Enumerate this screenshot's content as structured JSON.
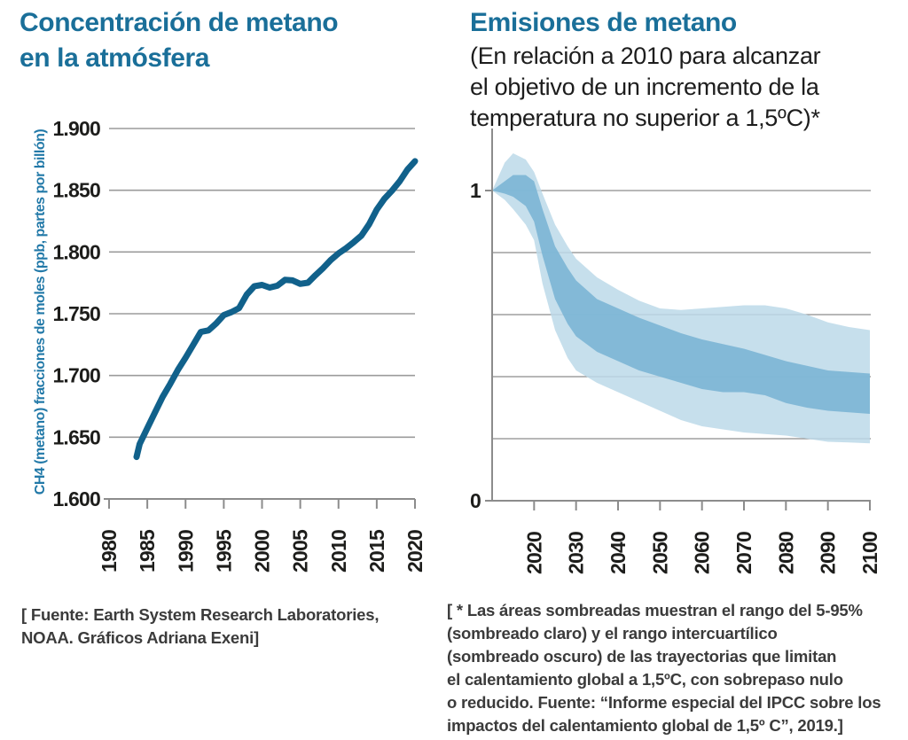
{
  "page": {
    "background": "#ffffff"
  },
  "left_chart": {
    "title_lines": [
      "Concentración de metano",
      "en la atmósfera"
    ],
    "source_lines": [
      "[  Fuente: Earth System Research Laboratories,",
      "NOAA. Gráficos Adriana Exeni]"
    ]
  },
  "right_chart": {
    "title_lines": [
      "Emisiones de metano"
    ],
    "subtitle_lines": [
      "(En relación a 2010 para alcanzar",
      "el objetivo de un incremento de la",
      "temperatura no superior a 1,5ºC)*"
    ],
    "footnote_lines": [
      "[ * Las áreas sombreadas muestran el rango del 5-95%",
      "(sombreado claro) y el rango intercuartílico",
      "(sombreado oscuro) de las trayectorias que limitan",
      "el calentamiento global a 1,5ºC, con sobrepaso nulo",
      "o reducido.  Fuente: “Informe especial del IPCC sobre los",
      "impactos del calentamiento global de 1,5º C”, 2019.]"
    ]
  },
  "colors": {
    "title_teal": "#1a6f99",
    "axis_label_teal": "#2279a8",
    "line": "#11618b",
    "band_light": "#bcd9e9",
    "band_dark": "#77b3d3",
    "grid_left": "#9b9b9b",
    "grid_right": "#8c8c8c",
    "axis": "#8c8c8c",
    "tick_text": "#1d1d1b",
    "footnote_text": "#3b3b3b"
  },
  "chart_data": [
    {
      "type": "line",
      "title": "Concentración de metano en la atmósfera",
      "ylabel": "CH4 (metano) fracciones de moles (ppb, partes por billón)",
      "xlabel": "",
      "x": [
        1983.6,
        1984,
        1985,
        1986,
        1987,
        1988,
        1989,
        1990,
        1991,
        1992,
        1993,
        1994,
        1995,
        1996,
        1997,
        1998,
        1999,
        2000,
        2001,
        2002,
        2003,
        2004,
        2005,
        2006,
        2007,
        2008,
        2009,
        2010,
        2011,
        2012,
        2013,
        2014,
        2015,
        2016,
        2017,
        2018,
        2019,
        2020
      ],
      "values": [
        1634,
        1644.5,
        1657.3,
        1670.1,
        1682.7,
        1693.2,
        1704.5,
        1714.4,
        1724.8,
        1735.3,
        1736.5,
        1742.1,
        1748.9,
        1751.3,
        1754.5,
        1765.5,
        1772.3,
        1773.3,
        1771.2,
        1772.7,
        1777.4,
        1777.0,
        1774.2,
        1775.1,
        1781.3,
        1787.0,
        1793.6,
        1798.9,
        1803.1,
        1808.0,
        1813.3,
        1822.5,
        1834.3,
        1843.1,
        1849.7,
        1857.3,
        1866.6,
        1873.5
      ],
      "xticks": [
        1980,
        1985,
        1990,
        1995,
        2000,
        2005,
        2010,
        2015,
        2020
      ],
      "yticks": [
        1600,
        1650,
        1700,
        1750,
        1800,
        1850,
        1900
      ],
      "ytick_labels": [
        "1.600",
        "1.650",
        "1.700",
        "1.750",
        "1.800",
        "1.850",
        "1.900"
      ],
      "xlim": [
        1980,
        2020
      ],
      "ylim": [
        1600,
        1900
      ],
      "grid": true,
      "unit": "ppb"
    },
    {
      "type": "area",
      "title": "Emisiones de metano (en relación a 2010 para alcanzar el objetivo de un incremento de la temperatura no superior a 1,5ºC)",
      "x": [
        2010,
        2013,
        2015,
        2018,
        2020,
        2022,
        2025,
        2028,
        2030,
        2035,
        2040,
        2045,
        2050,
        2055,
        2060,
        2065,
        2070,
        2075,
        2080,
        2085,
        2090,
        2095,
        2100
      ],
      "series": [
        {
          "name": "rango 5-95% (sombreado claro)",
          "top": [
            1.0,
            1.09,
            1.12,
            1.1,
            1.06,
            0.99,
            0.89,
            0.82,
            0.78,
            0.72,
            0.68,
            0.645,
            0.62,
            0.615,
            0.62,
            0.625,
            0.63,
            0.63,
            0.62,
            0.6,
            0.575,
            0.56,
            0.55
          ],
          "bottom": [
            1.0,
            0.97,
            0.94,
            0.89,
            0.84,
            0.7,
            0.55,
            0.46,
            0.42,
            0.38,
            0.35,
            0.32,
            0.29,
            0.26,
            0.24,
            0.23,
            0.22,
            0.215,
            0.21,
            0.2,
            0.19,
            0.188,
            0.185
          ]
        },
        {
          "name": "rango intercuartílico (sombreado oscuro)",
          "top": [
            1.0,
            1.03,
            1.05,
            1.05,
            1.03,
            0.94,
            0.82,
            0.75,
            0.71,
            0.65,
            0.62,
            0.59,
            0.565,
            0.54,
            0.52,
            0.505,
            0.49,
            0.47,
            0.45,
            0.435,
            0.42,
            0.415,
            0.41
          ],
          "bottom": [
            1.0,
            0.99,
            0.98,
            0.95,
            0.9,
            0.79,
            0.65,
            0.57,
            0.53,
            0.48,
            0.45,
            0.42,
            0.4,
            0.38,
            0.36,
            0.35,
            0.35,
            0.34,
            0.315,
            0.3,
            0.29,
            0.285,
            0.28
          ]
        }
      ],
      "xticks": [
        2020,
        2030,
        2040,
        2050,
        2060,
        2070,
        2080,
        2090,
        2100
      ],
      "yticks": [
        0,
        0.2,
        0.4,
        0.6,
        0.8,
        1
      ],
      "labeled_yticks": [
        {
          "v": 1,
          "label": "1"
        },
        {
          "v": 0,
          "label": "0"
        }
      ],
      "xlim": [
        2010,
        2100
      ],
      "ylim": [
        0,
        1.2
      ],
      "grid": true
    }
  ]
}
